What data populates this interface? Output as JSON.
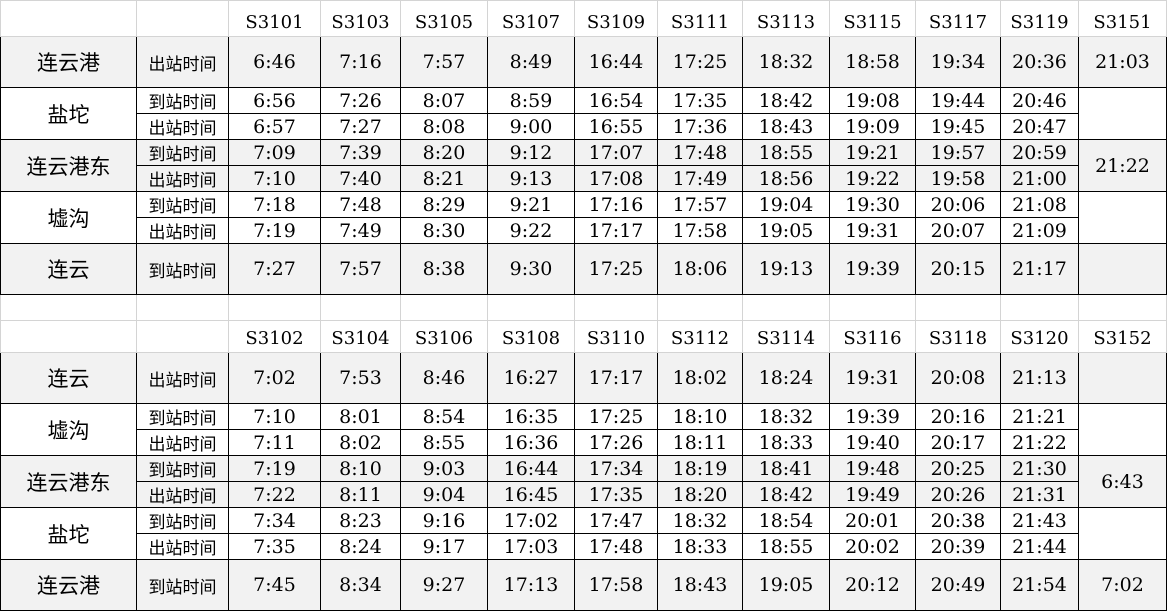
{
  "tables": [
    {
      "trains": [
        "S3101",
        "S3103",
        "S3105",
        "S3107",
        "S3109",
        "S3111",
        "S3113",
        "S3115",
        "S3117",
        "S3119",
        "S3151"
      ],
      "stations": [
        {
          "name": "连云港",
          "rows": [
            {
              "label": "出站时间",
              "times": [
                "6:46",
                "7:16",
                "7:57",
                "8:49",
                "16:44",
                "17:25",
                "18:32",
                "18:58",
                "19:34",
                "20:36"
              ]
            }
          ],
          "last": "21:03"
        },
        {
          "name": "盐坨",
          "rows": [
            {
              "label": "到站时间",
              "times": [
                "6:56",
                "7:26",
                "8:07",
                "8:59",
                "16:54",
                "17:35",
                "18:42",
                "19:08",
                "19:44",
                "20:46"
              ]
            },
            {
              "label": "出站时间",
              "times": [
                "6:57",
                "7:27",
                "8:08",
                "9:00",
                "16:55",
                "17:36",
                "18:43",
                "19:09",
                "19:45",
                "20:47"
              ]
            }
          ],
          "last": ""
        },
        {
          "name": "连云港东",
          "rows": [
            {
              "label": "到站时间",
              "times": [
                "7:09",
                "7:39",
                "8:20",
                "9:12",
                "17:07",
                "17:48",
                "18:55",
                "19:21",
                "19:57",
                "20:59"
              ]
            },
            {
              "label": "出站时间",
              "times": [
                "7:10",
                "7:40",
                "8:21",
                "9:13",
                "17:08",
                "17:49",
                "18:56",
                "19:22",
                "19:58",
                "21:00"
              ]
            }
          ],
          "last": "21:22"
        },
        {
          "name": "墟沟",
          "rows": [
            {
              "label": "到站时间",
              "times": [
                "7:18",
                "7:48",
                "8:29",
                "9:21",
                "17:16",
                "17:57",
                "19:04",
                "19:30",
                "20:06",
                "21:08"
              ]
            },
            {
              "label": "出站时间",
              "times": [
                "7:19",
                "7:49",
                "8:30",
                "9:22",
                "17:17",
                "17:58",
                "19:05",
                "19:31",
                "20:07",
                "21:09"
              ]
            }
          ],
          "last": ""
        },
        {
          "name": "连云",
          "rows": [
            {
              "label": "到站时间",
              "times": [
                "7:27",
                "7:57",
                "8:38",
                "9:30",
                "17:25",
                "18:06",
                "19:13",
                "19:39",
                "20:15",
                "21:17"
              ]
            }
          ],
          "last": ""
        }
      ]
    },
    {
      "trains": [
        "S3102",
        "S3104",
        "S3106",
        "S3108",
        "S3110",
        "S3112",
        "S3114",
        "S3116",
        "S3118",
        "S3120",
        "S3152"
      ],
      "stations": [
        {
          "name": "连云",
          "rows": [
            {
              "label": "出站时间",
              "times": [
                "7:02",
                "7:53",
                "8:46",
                "16:27",
                "17:17",
                "18:02",
                "18:24",
                "19:31",
                "20:08",
                "21:13"
              ]
            }
          ],
          "last": ""
        },
        {
          "name": "墟沟",
          "rows": [
            {
              "label": "到站时间",
              "times": [
                "7:10",
                "8:01",
                "8:54",
                "16:35",
                "17:25",
                "18:10",
                "18:32",
                "19:39",
                "20:16",
                "21:21"
              ]
            },
            {
              "label": "出站时间",
              "times": [
                "7:11",
                "8:02",
                "8:55",
                "16:36",
                "17:26",
                "18:11",
                "18:33",
                "19:40",
                "20:17",
                "21:22"
              ]
            }
          ],
          "last": ""
        },
        {
          "name": "连云港东",
          "rows": [
            {
              "label": "到站时间",
              "times": [
                "7:19",
                "8:10",
                "9:03",
                "16:44",
                "17:34",
                "18:19",
                "18:41",
                "19:48",
                "20:25",
                "21:30"
              ]
            },
            {
              "label": "出站时间",
              "times": [
                "7:22",
                "8:11",
                "9:04",
                "16:45",
                "17:35",
                "18:20",
                "18:42",
                "19:49",
                "20:26",
                "21:31"
              ]
            }
          ],
          "last": "6:43"
        },
        {
          "name": "盐坨",
          "rows": [
            {
              "label": "到站时间",
              "times": [
                "7:34",
                "8:23",
                "9:16",
                "17:02",
                "17:47",
                "18:32",
                "18:54",
                "20:01",
                "20:38",
                "21:43"
              ]
            },
            {
              "label": "出站时间",
              "times": [
                "7:35",
                "8:24",
                "9:17",
                "17:03",
                "17:48",
                "18:33",
                "18:55",
                "20:02",
                "20:39",
                "21:44"
              ]
            }
          ],
          "last": ""
        },
        {
          "name": "连云港",
          "rows": [
            {
              "label": "到站时间",
              "times": [
                "7:45",
                "8:34",
                "9:27",
                "17:13",
                "17:58",
                "18:43",
                "19:05",
                "20:12",
                "20:49",
                "21:54"
              ]
            }
          ],
          "last": "7:02"
        }
      ]
    }
  ],
  "colors": {
    "shaded": "#f2f2f2",
    "grid": "#d4d4d4",
    "border": "#000000"
  }
}
